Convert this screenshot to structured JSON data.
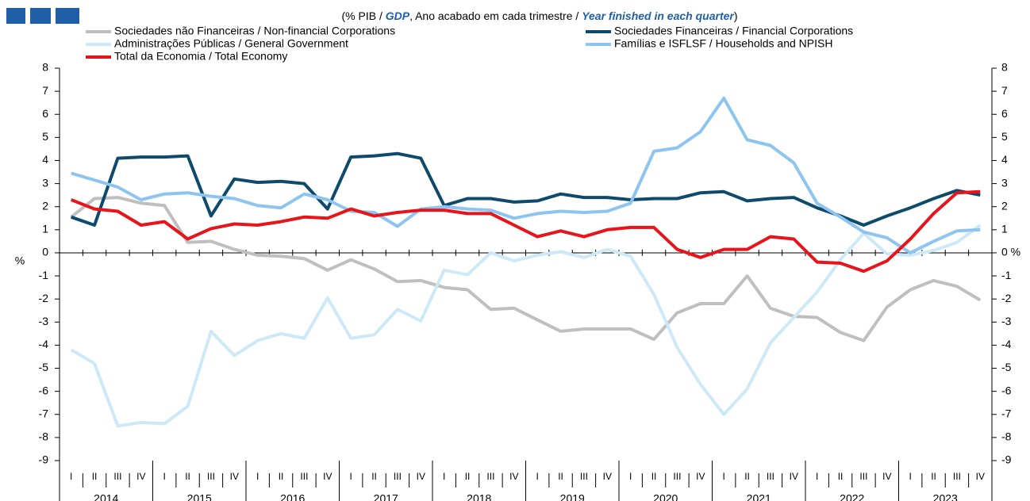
{
  "chart_data": {
    "type": "line",
    "title_parts": [
      "(% PIB / ",
      "GDP",
      ", Ano acabado em cada trimestre / ",
      "Year finished in each quarter",
      ")"
    ],
    "y_label": "%",
    "categories": [
      "I",
      "II",
      "III",
      "IV",
      "I",
      "II",
      "III",
      "IV",
      "I",
      "II",
      "III",
      "IV",
      "I",
      "II",
      "III",
      "IV",
      "I",
      "II",
      "III",
      "IV",
      "I",
      "II",
      "III",
      "IV",
      "I",
      "II",
      "III",
      "IV",
      "I",
      "II",
      "III",
      "IV",
      "I",
      "II",
      "III",
      "IV",
      "I",
      "II",
      "III",
      "IV"
    ],
    "years": [
      "2014",
      "2015",
      "2016",
      "2017",
      "2018",
      "2019",
      "2020",
      "2021",
      "2022",
      "2023"
    ],
    "ylim": [
      -9,
      8
    ],
    "yticks": [
      -9,
      -8,
      -7,
      -6,
      -5,
      -4,
      -3,
      -2,
      -1,
      0,
      1,
      2,
      3,
      4,
      5,
      6,
      7,
      8
    ],
    "y2lim": [
      -9,
      8
    ],
    "y2ticks": [
      -9,
      -8,
      -7,
      -6,
      -5,
      -4,
      -3,
      -2,
      -1,
      {
        "value": 0,
        "label": "0 %"
      },
      1,
      2,
      3,
      4,
      5,
      6,
      7,
      8
    ],
    "series": [
      {
        "name": "Sociedades não Financeiras / Non-financial Corporations",
        "color": "#bfbfbf",
        "values": [
          1.55,
          2.35,
          2.4,
          2.15,
          2.05,
          0.45,
          0.5,
          0.15,
          -0.1,
          -0.15,
          -0.25,
          -0.75,
          -0.3,
          -0.7,
          -1.25,
          -1.2,
          -1.5,
          -1.6,
          -2.45,
          -2.4,
          -2.9,
          -3.4,
          -3.3,
          -3.3,
          -3.3,
          -3.75,
          -2.6,
          -2.2,
          -2.2,
          -1.0,
          -2.4,
          -2.75,
          -2.8,
          -3.45,
          -3.8,
          -2.35,
          -1.6,
          -1.2,
          -1.45,
          -2.05
        ]
      },
      {
        "name": "Sociedades Financeiras / Financial Corporations",
        "color": "#0e4a6b",
        "values": [
          1.55,
          1.2,
          4.1,
          4.15,
          4.15,
          4.2,
          1.6,
          3.2,
          3.05,
          3.1,
          3.0,
          1.9,
          4.15,
          4.2,
          4.3,
          4.1,
          2.05,
          2.35,
          2.35,
          2.2,
          2.25,
          2.55,
          2.4,
          2.4,
          2.3,
          2.35,
          2.35,
          2.6,
          2.65,
          2.25,
          2.35,
          2.4,
          1.95,
          1.6,
          1.2,
          1.6,
          1.95,
          2.35,
          2.7,
          2.5
        ]
      },
      {
        "name": "Administrações Públicas / General Government",
        "color": "#cde9f8",
        "values": [
          -4.2,
          -4.8,
          -7.5,
          -7.35,
          -7.4,
          -6.65,
          -3.4,
          -4.45,
          -3.8,
          -3.5,
          -3.7,
          -1.95,
          -3.7,
          -3.55,
          -2.45,
          -2.95,
          -0.75,
          -0.95,
          0.0,
          -0.35,
          -0.1,
          0.05,
          -0.2,
          0.15,
          -0.15,
          -1.8,
          -4.1,
          -5.7,
          -7.0,
          -5.9,
          -3.9,
          -2.8,
          -1.7,
          -0.3,
          0.85,
          -0.05,
          -0.1,
          0.1,
          0.45,
          1.2
        ]
      },
      {
        "name": "Famílias e ISFLSF / Households and NPISH",
        "color": "#8ec5f0",
        "values": [
          3.45,
          3.15,
          2.85,
          2.3,
          2.55,
          2.6,
          2.45,
          2.35,
          2.05,
          1.95,
          2.55,
          2.3,
          1.8,
          1.75,
          1.15,
          1.9,
          2.0,
          1.9,
          1.85,
          1.5,
          1.7,
          1.8,
          1.75,
          1.8,
          2.15,
          4.4,
          4.55,
          5.25,
          6.7,
          4.9,
          4.65,
          3.9,
          2.15,
          1.55,
          0.9,
          0.65,
          0.0,
          0.5,
          0.95,
          1.0
        ]
      },
      {
        "name": "Total da Economia / Total Economy",
        "color": "#e8141c",
        "values": [
          2.3,
          1.9,
          1.8,
          1.2,
          1.35,
          0.6,
          1.05,
          1.25,
          1.2,
          1.35,
          1.55,
          1.5,
          1.9,
          1.6,
          1.75,
          1.85,
          1.85,
          1.7,
          1.7,
          1.2,
          0.7,
          0.95,
          0.7,
          1.0,
          1.1,
          1.1,
          0.15,
          -0.2,
          0.15,
          0.15,
          0.7,
          0.6,
          -0.4,
          -0.45,
          -0.8,
          -0.35,
          0.6,
          1.7,
          2.6,
          2.65
        ]
      }
    ]
  }
}
